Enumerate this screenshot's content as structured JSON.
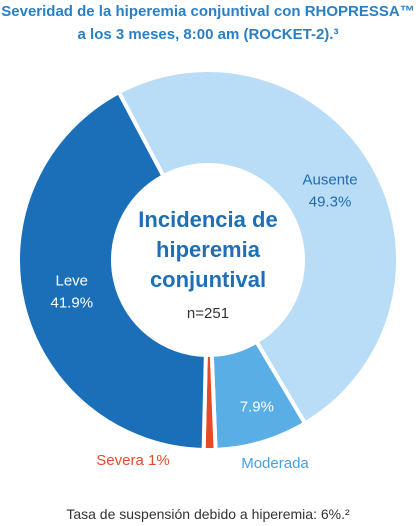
{
  "chart_data": {
    "type": "donut",
    "title": "Severidad de la hiperemia conjuntival con RHOPRESSA™ a los 3 meses, 8:00 am (ROCKET-2).³",
    "center_title": "Incidencia de hiperemia conjuntival",
    "center_subtitle": "n=251",
    "footnote": "Tasa de suspensión debido a hiperemia: 6%.²",
    "categories": [
      "Ausente",
      "Moderada",
      "Severa",
      "Leve"
    ],
    "values": [
      49.3,
      7.9,
      1,
      41.9
    ],
    "value_labels": [
      "49.3%",
      "7.9%",
      "1%",
      "41.9%"
    ],
    "colors": [
      "#b9dcf7",
      "#5aaee6",
      "#e8492a",
      "#1a6fb8"
    ]
  }
}
